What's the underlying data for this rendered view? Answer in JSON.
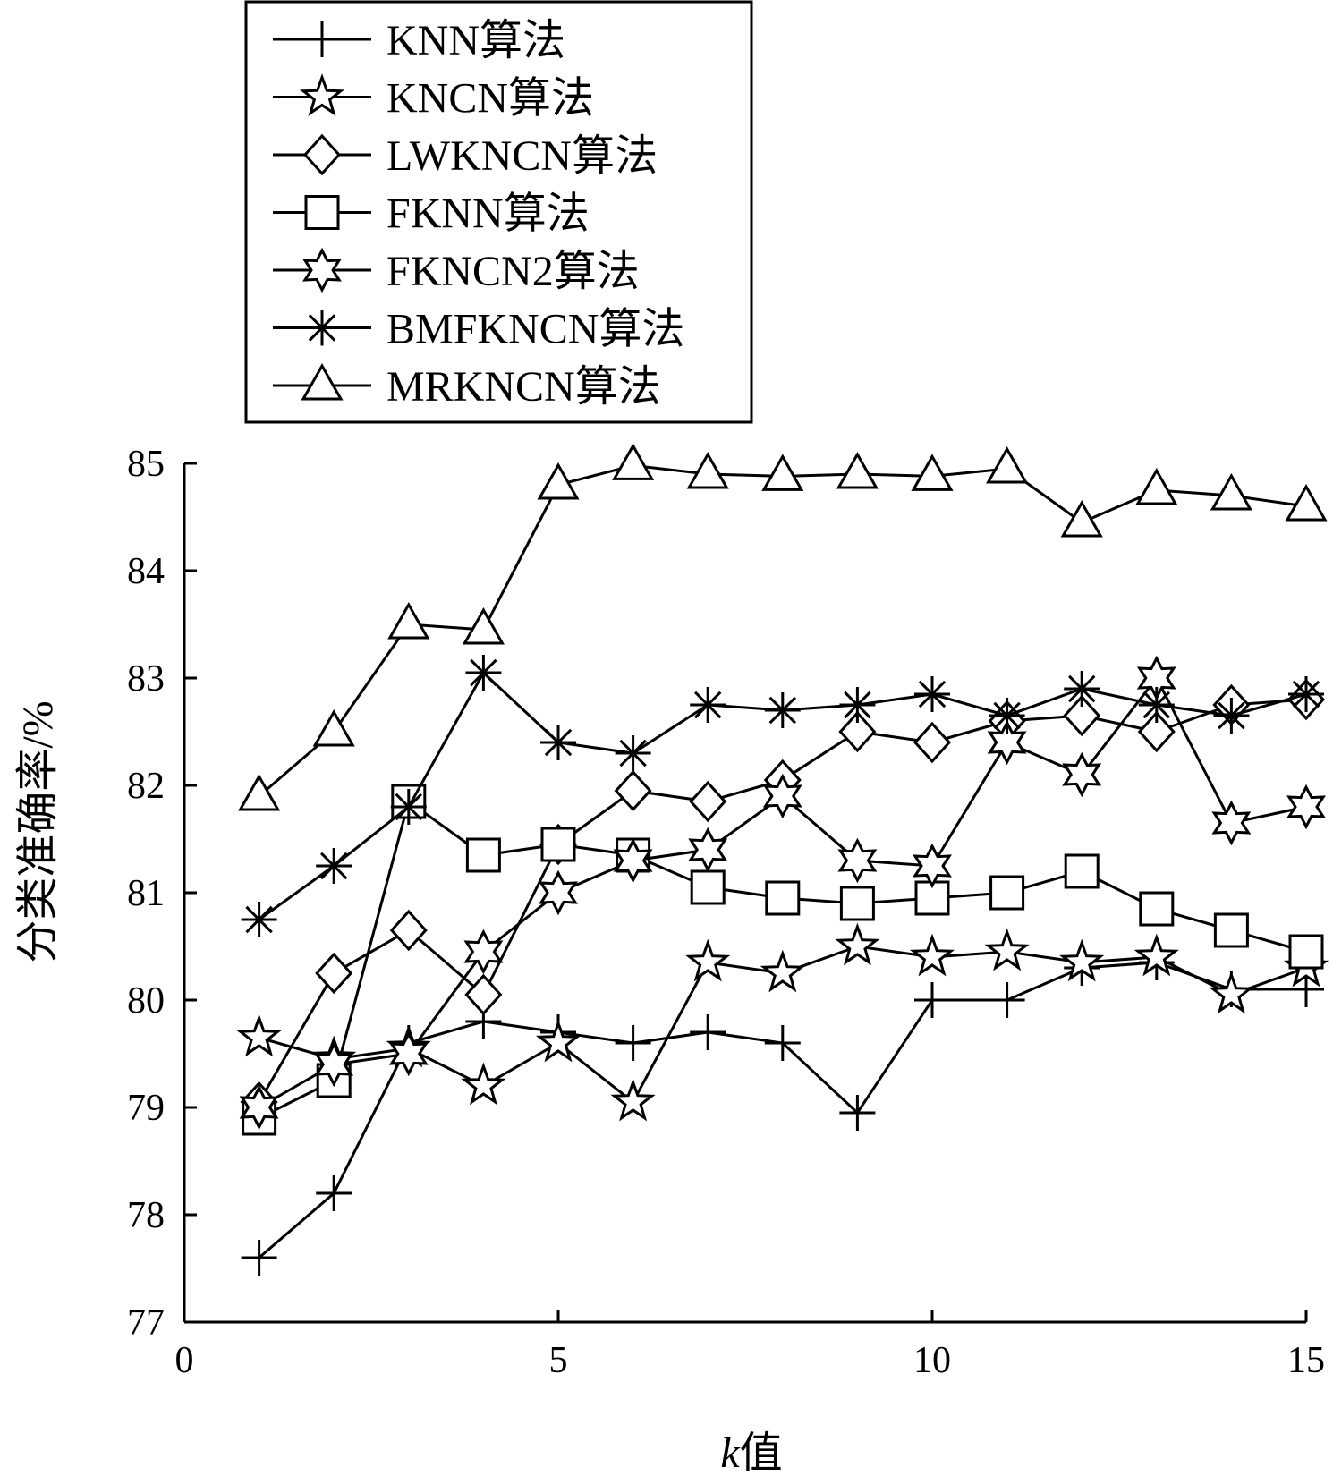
{
  "chart_data": {
    "type": "line",
    "title": "",
    "xlabel_italic": "k",
    "xlabel_rest": "值",
    "ylabel": "分类准确率/%",
    "xlim": [
      0,
      15
    ],
    "ylim": [
      77,
      85
    ],
    "xticks": [
      "0",
      "5",
      "10",
      "15"
    ],
    "yticks": [
      "77",
      "78",
      "79",
      "80",
      "81",
      "82",
      "83",
      "84",
      "85"
    ],
    "grid": false,
    "legend_position": "top-left, above plot",
    "x": [
      1,
      2,
      3,
      4,
      5,
      6,
      7,
      8,
      9,
      10,
      11,
      12,
      13,
      14,
      15
    ],
    "series": [
      {
        "name": "KNN算法",
        "marker": "plus",
        "values": [
          77.6,
          78.2,
          79.6,
          79.8,
          79.7,
          79.6,
          79.7,
          79.6,
          78.95,
          80.0,
          80.0,
          80.3,
          80.35,
          80.1,
          80.1
        ]
      },
      {
        "name": "KNCN算法",
        "marker": "star5",
        "values": [
          79.65,
          79.45,
          79.55,
          79.2,
          79.6,
          79.05,
          80.35,
          80.25,
          80.5,
          80.4,
          80.45,
          80.35,
          80.4,
          80.05,
          80.3
        ]
      },
      {
        "name": "LWKNCN算法",
        "marker": "diamond",
        "values": [
          79.05,
          80.25,
          80.65,
          80.05,
          81.45,
          81.95,
          81.85,
          82.05,
          82.5,
          82.4,
          82.6,
          82.65,
          82.5,
          82.75,
          82.8
        ]
      },
      {
        "name": "FKNN算法",
        "marker": "square",
        "values": [
          78.9,
          79.25,
          81.85,
          81.35,
          81.45,
          81.35,
          81.05,
          80.95,
          80.9,
          80.95,
          81.0,
          81.2,
          80.85,
          80.65,
          80.45
        ]
      },
      {
        "name": "FKNCN2算法",
        "marker": "star6",
        "values": [
          79.0,
          79.4,
          79.5,
          80.45,
          81.0,
          81.3,
          81.4,
          81.9,
          81.3,
          81.25,
          82.4,
          82.1,
          83.0,
          81.65,
          81.8
        ]
      },
      {
        "name": "BMFKNCN算法",
        "marker": "asterisk",
        "values": [
          80.75,
          81.25,
          81.8,
          83.05,
          82.4,
          82.3,
          82.75,
          82.7,
          82.75,
          82.85,
          82.65,
          82.9,
          82.75,
          82.65,
          82.85
        ]
      },
      {
        "name": "MRKNCN算法",
        "marker": "triangle",
        "values": [
          81.9,
          82.5,
          83.5,
          83.45,
          84.8,
          84.98,
          84.9,
          84.88,
          84.9,
          84.88,
          84.95,
          84.45,
          84.75,
          84.7,
          84.6
        ]
      }
    ]
  }
}
